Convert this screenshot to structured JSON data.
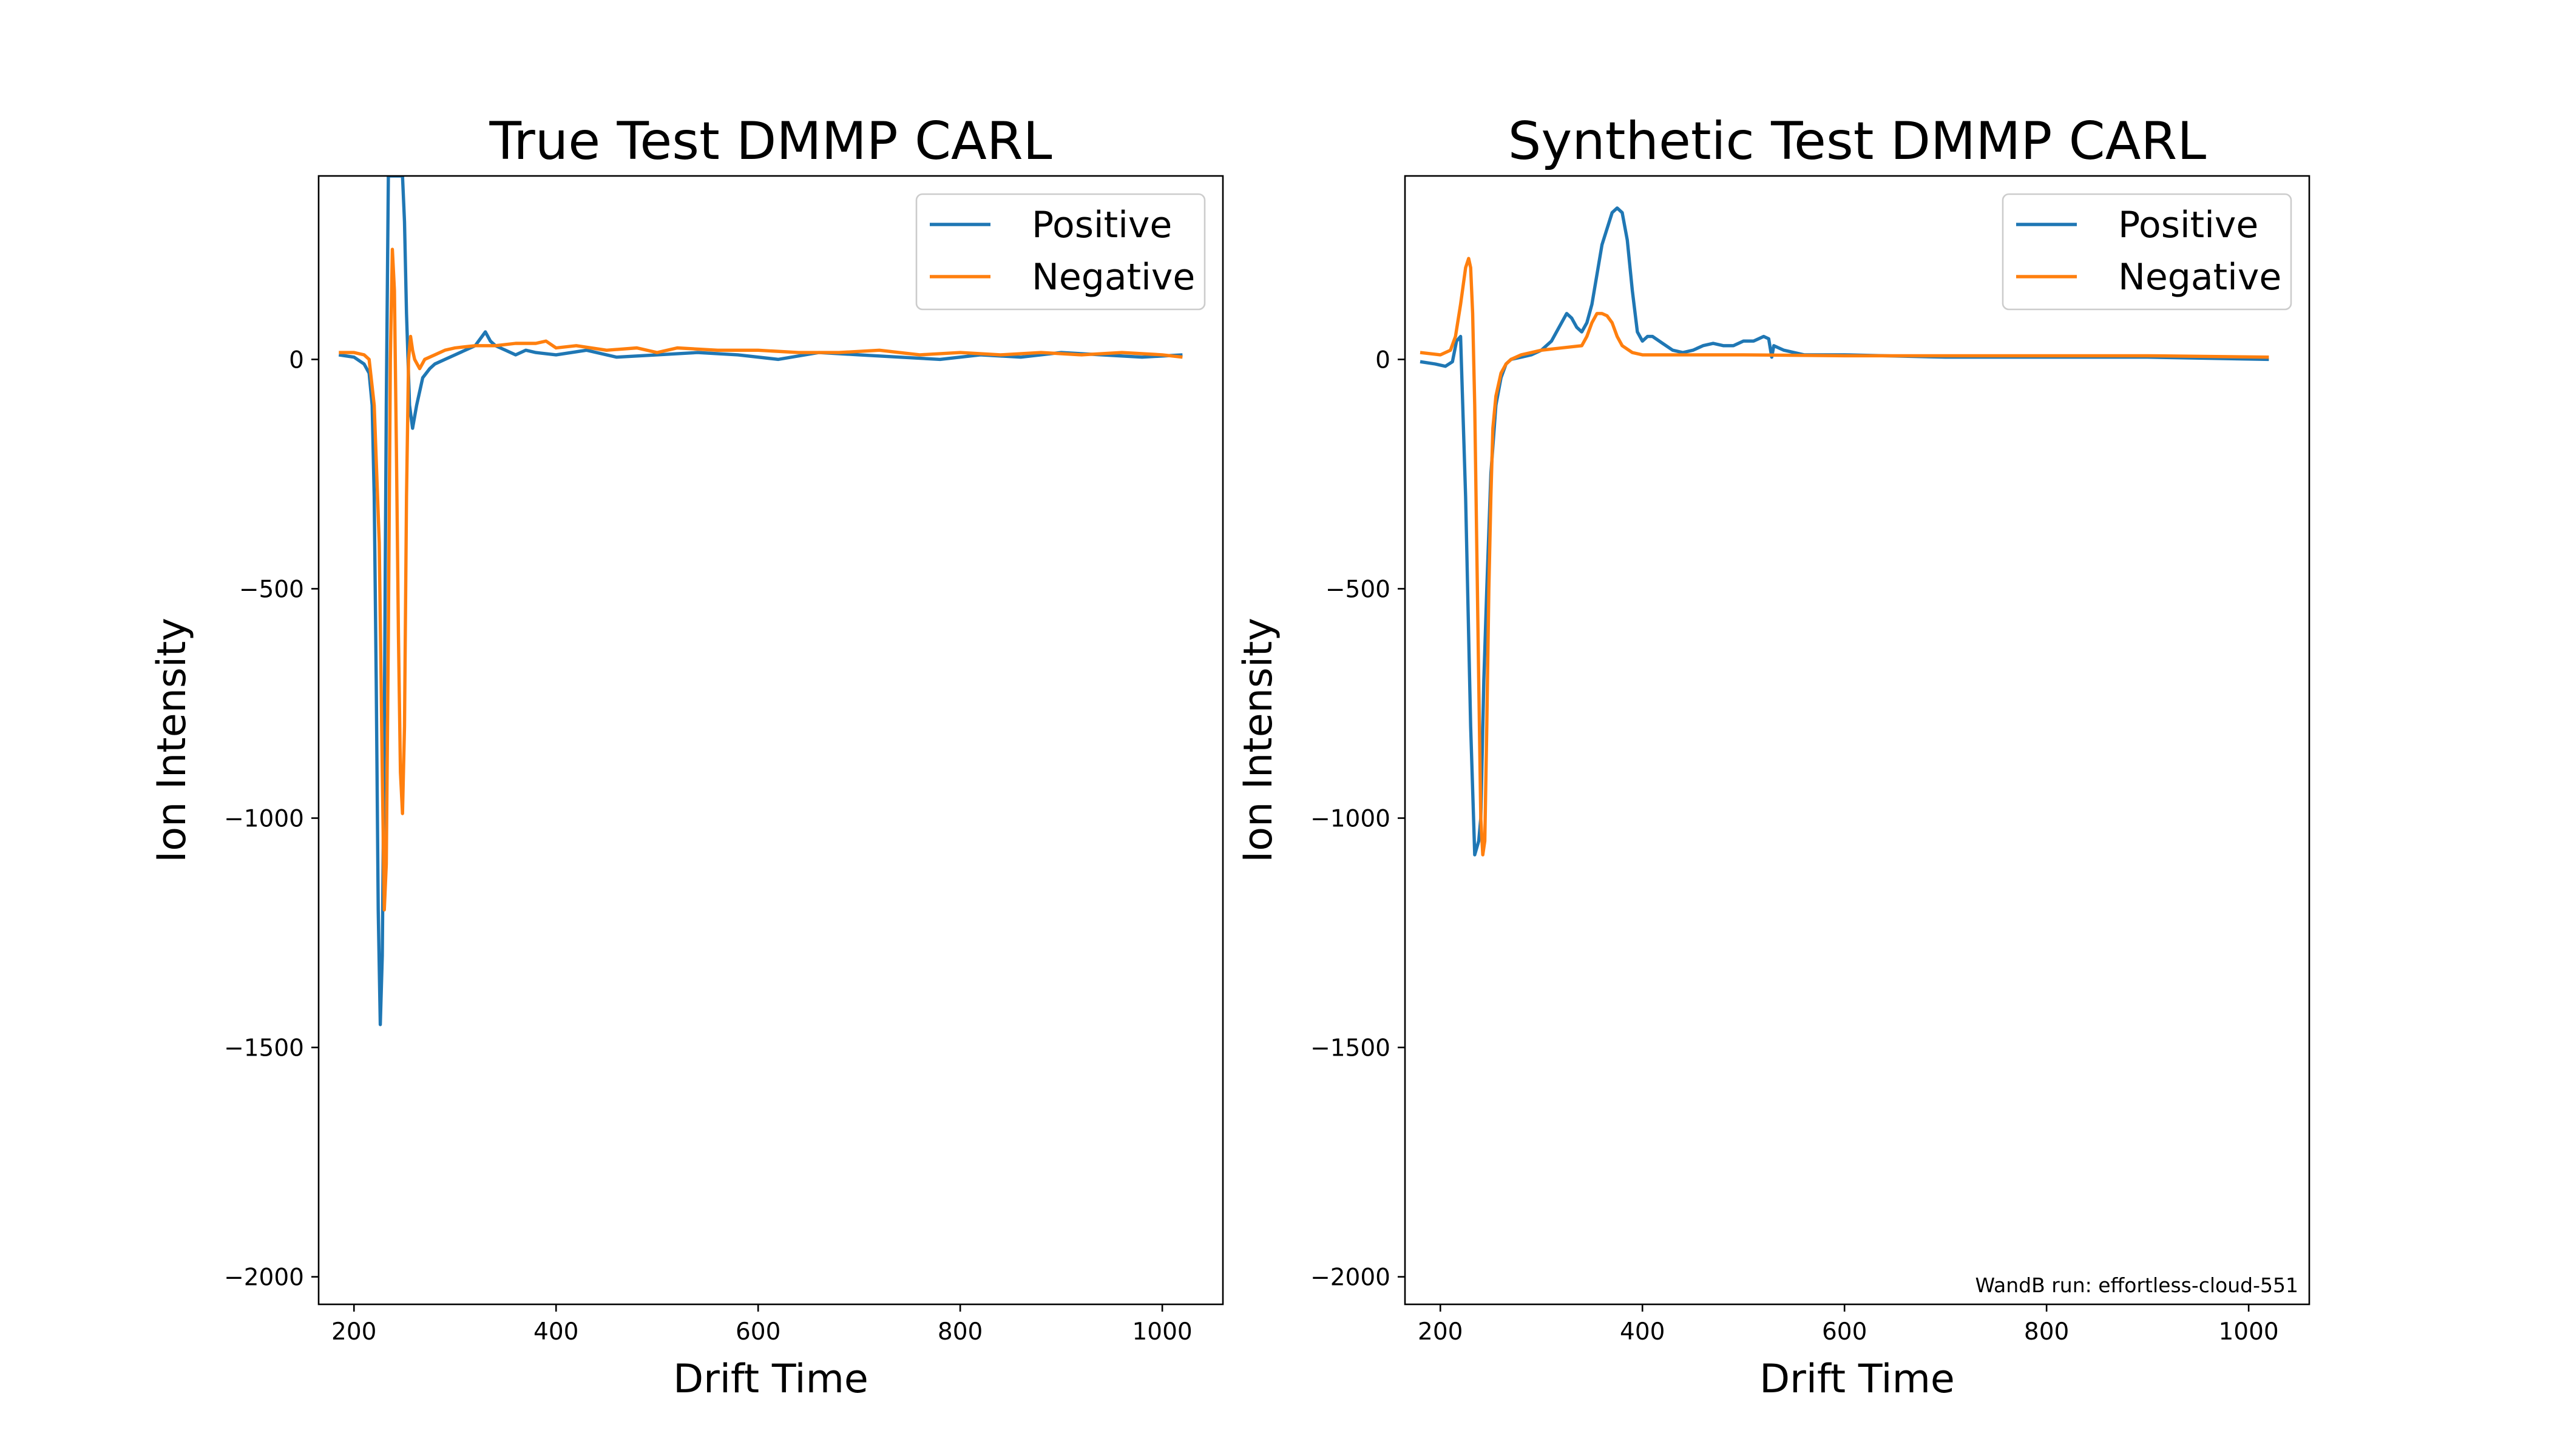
{
  "chart_data": [
    {
      "type": "line",
      "title": "True Test DMMP CARL",
      "xlabel": "Drift Time",
      "ylabel": "Ion Intensity",
      "xlim": [
        165,
        1060
      ],
      "ylim": [
        -2060,
        400
      ],
      "xticks": [
        200,
        400,
        600,
        800,
        1000
      ],
      "yticks": [
        0,
        -500,
        -1000,
        -1500,
        -2000
      ],
      "xtick_labels": [
        "200",
        "400",
        "600",
        "800",
        "1000"
      ],
      "ytick_labels": [
        "0",
        "−500",
        "−1000",
        "−1500",
        "−2000"
      ],
      "grid": false,
      "legend_position": "top-right",
      "annotation": "",
      "series": [
        {
          "name": "Positive",
          "color": "#1f77b4",
          "x": [
            185,
            200,
            210,
            215,
            218,
            220,
            222,
            224,
            226,
            228,
            230,
            232,
            234,
            236,
            238,
            240,
            242,
            245,
            248,
            250,
            252,
            255,
            258,
            262,
            268,
            275,
            280,
            290,
            300,
            310,
            320,
            330,
            335,
            340,
            350,
            360,
            370,
            380,
            400,
            430,
            460,
            500,
            540,
            580,
            620,
            660,
            700,
            740,
            780,
            820,
            860,
            900,
            940,
            980,
            1020
          ],
          "y": [
            10,
            5,
            -10,
            -30,
            -100,
            -300,
            -700,
            -1200,
            -1450,
            -1300,
            -800,
            -100,
            400,
            400,
            400,
            400,
            400,
            400,
            400,
            300,
            100,
            -100,
            -150,
            -100,
            -40,
            -20,
            -10,
            0,
            10,
            20,
            30,
            60,
            40,
            30,
            20,
            10,
            20,
            15,
            10,
            20,
            5,
            10,
            15,
            10,
            0,
            15,
            10,
            5,
            0,
            10,
            5,
            15,
            10,
            5,
            10
          ]
        },
        {
          "name": "Negative",
          "color": "#ff7f0e",
          "x": [
            185,
            200,
            210,
            215,
            220,
            225,
            228,
            230,
            232,
            234,
            236,
            238,
            240,
            242,
            244,
            246,
            248,
            250,
            252,
            254,
            256,
            258,
            260,
            265,
            270,
            280,
            290,
            300,
            320,
            340,
            360,
            380,
            390,
            400,
            420,
            450,
            480,
            500,
            520,
            560,
            600,
            640,
            680,
            720,
            760,
            800,
            840,
            880,
            920,
            960,
            1000,
            1020
          ],
          "y": [
            15,
            15,
            10,
            0,
            -100,
            -400,
            -900,
            -1200,
            -1100,
            -600,
            0,
            240,
            150,
            -200,
            -600,
            -900,
            -990,
            -800,
            -300,
            0,
            50,
            20,
            0,
            -20,
            0,
            10,
            20,
            25,
            30,
            30,
            35,
            35,
            40,
            25,
            30,
            20,
            25,
            15,
            25,
            20,
            20,
            15,
            15,
            20,
            10,
            15,
            10,
            15,
            10,
            15,
            10,
            5
          ]
        }
      ]
    },
    {
      "type": "line",
      "title": "Synthetic Test DMMP CARL",
      "xlabel": "Drift Time",
      "ylabel": "Ion Intensity",
      "xlim": [
        165,
        1060
      ],
      "ylim": [
        -2060,
        400
      ],
      "xticks": [
        200,
        400,
        600,
        800,
        1000
      ],
      "yticks": [
        0,
        -500,
        -1000,
        -1500,
        -2000
      ],
      "xtick_labels": [
        "200",
        "400",
        "600",
        "800",
        "1000"
      ],
      "ytick_labels": [
        "0",
        "−500",
        "−1000",
        "−1500",
        "−2000"
      ],
      "grid": false,
      "legend_position": "top-right",
      "annotation": "WandB run: effortless-cloud-551",
      "series": [
        {
          "name": "Positive",
          "color": "#1f77b4",
          "x": [
            180,
            195,
            205,
            212,
            216,
            220,
            225,
            230,
            234,
            238,
            240,
            243,
            246,
            250,
            255,
            260,
            265,
            270,
            280,
            290,
            300,
            310,
            320,
            325,
            330,
            335,
            340,
            345,
            350,
            360,
            370,
            375,
            380,
            385,
            390,
            395,
            400,
            405,
            410,
            420,
            430,
            440,
            450,
            460,
            470,
            480,
            490,
            500,
            510,
            515,
            520,
            525,
            528,
            530,
            540,
            560,
            600,
            700,
            800,
            900,
            1020
          ],
          "y": [
            -5,
            -10,
            -15,
            -5,
            40,
            50,
            -300,
            -800,
            -1080,
            -1050,
            -1000,
            -700,
            -500,
            -250,
            -100,
            -40,
            -10,
            0,
            5,
            10,
            20,
            40,
            80,
            100,
            90,
            70,
            60,
            80,
            120,
            250,
            320,
            330,
            320,
            260,
            150,
            60,
            40,
            50,
            50,
            35,
            20,
            15,
            20,
            30,
            35,
            30,
            30,
            40,
            40,
            45,
            50,
            45,
            5,
            30,
            20,
            10,
            10,
            5,
            5,
            5,
            0
          ]
        },
        {
          "name": "Negative",
          "color": "#ff7f0e",
          "x": [
            180,
            200,
            210,
            215,
            220,
            225,
            228,
            230,
            232,
            234,
            236,
            238,
            240,
            242,
            244,
            246,
            248,
            250,
            252,
            255,
            260,
            265,
            270,
            280,
            290,
            300,
            320,
            340,
            345,
            350,
            355,
            360,
            365,
            370,
            375,
            380,
            390,
            400,
            420,
            450,
            500,
            600,
            700,
            800,
            900,
            1020
          ],
          "y": [
            15,
            10,
            20,
            50,
            120,
            200,
            220,
            200,
            100,
            -100,
            -400,
            -700,
            -1000,
            -1080,
            -1050,
            -800,
            -500,
            -300,
            -150,
            -80,
            -30,
            -10,
            0,
            10,
            15,
            20,
            25,
            30,
            50,
            80,
            100,
            100,
            95,
            80,
            50,
            30,
            15,
            10,
            10,
            10,
            10,
            8,
            8,
            8,
            8,
            5
          ]
        }
      ]
    }
  ]
}
